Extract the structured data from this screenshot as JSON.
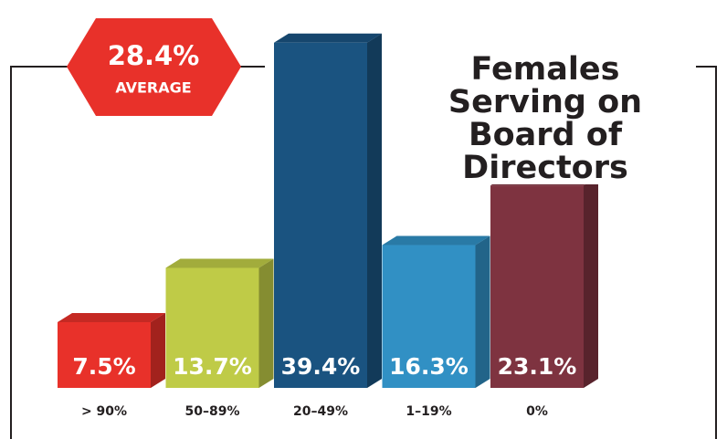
{
  "chart_data": {
    "type": "bar3d",
    "title": "Females Serving on Board of Directors",
    "annotation": {
      "value": "28.4%",
      "label": "AVERAGE"
    },
    "categories": [
      "> 90%",
      "50–89%",
      "20–49%",
      "1–19%",
      "0%"
    ],
    "values": [
      7.5,
      13.7,
      39.4,
      16.3,
      23.1
    ],
    "value_labels": [
      "7.5%",
      "13.7%",
      "39.4%",
      "16.3%",
      "23.1%"
    ],
    "colors": [
      "#e8312a",
      "#bfcb47",
      "#1a5380",
      "#3190c4",
      "#7e3340"
    ]
  }
}
